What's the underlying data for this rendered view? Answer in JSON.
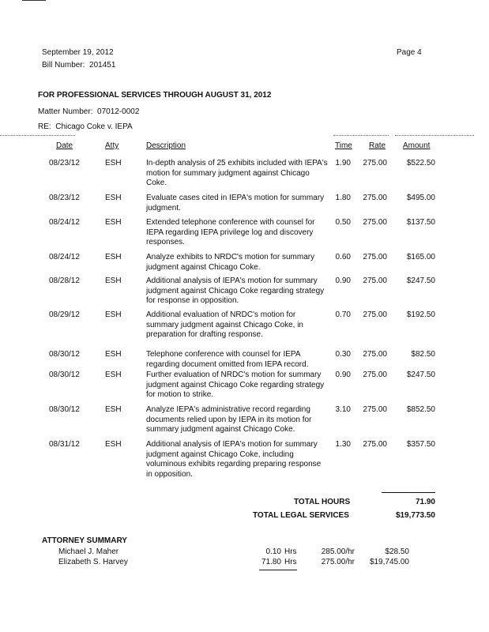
{
  "header": {
    "date": "September 19, 2012",
    "bill_number_label": "Bill Number:",
    "bill_number": "201451",
    "page": "Page 4"
  },
  "section_title": "FOR PROFESSIONAL SERVICES THROUGH AUGUST 31, 2012",
  "matter": {
    "label": "Matter Number:",
    "value": "07012-0002"
  },
  "re": {
    "label": "RE:",
    "value": "Chicago Coke v. IEPA"
  },
  "columns": {
    "date": "Date",
    "atty": "Atty",
    "description": "Description",
    "time": "Time",
    "rate": "Rate",
    "amount": "Amount"
  },
  "entries": [
    {
      "date": "08/23/12",
      "atty": "ESH",
      "description": "In-depth analysis of 25 exhibits included with IEPA's motion for summary judgment against Chicago Coke.",
      "time": "1.90",
      "rate": "275.00",
      "amount": "$522.50"
    },
    {
      "date": "08/23/12",
      "atty": "ESH",
      "description": "Evaluate cases cited in IEPA's motion for summary judgment.",
      "time": "1.80",
      "rate": "275.00",
      "amount": "$495.00"
    },
    {
      "date": "08/24/12",
      "atty": "ESH",
      "description": "Extended telephone conference with counsel for IEPA regarding IEPA privilege log and discovery responses.",
      "time": "0.50",
      "rate": "275.00",
      "amount": "$137.50"
    },
    {
      "date": "08/24/12",
      "atty": "ESH",
      "description": "Analyze exhibits to NRDC's motion for summary judgment against Chicago Coke.",
      "time": "0.60",
      "rate": "275.00",
      "amount": "$165.00"
    },
    {
      "date": "08/28/12",
      "atty": "ESH",
      "description": "Additional analysis of IEPA's motion for summary judgment against Chicago Coke regarding strategy for response in opposition.",
      "time": "0.90",
      "rate": "275.00",
      "amount": "$247.50"
    },
    {
      "date": "08/29/12",
      "atty": "ESH",
      "description": "Additional evaluation of NRDC's motion for summary judgment against Chicago Coke, in preparation for drafting response.",
      "time": "0.70",
      "rate": "275.00",
      "amount": "$192.50"
    },
    {
      "date": "08/30/12",
      "atty": "ESH",
      "description": "Telephone conference with counsel for IEPA regarding document omitted from IEPA record.",
      "time": "0.30",
      "rate": "275.00",
      "amount": "$82.50"
    },
    {
      "date": "08/30/12",
      "atty": "ESH",
      "description": "Further evaluation of NRDC's motion for summary judgment against Chicago Coke regarding strategy for motion to strike.",
      "time": "0.90",
      "rate": "275.00",
      "amount": "$247.50"
    },
    {
      "date": "08/30/12",
      "atty": "ESH",
      "description": "Analyze IEPA's administrative record regarding documents relied upon by IEPA in its motion for summary judgment against Chicago Coke.",
      "time": "3.10",
      "rate": "275.00",
      "amount": "$852.50"
    },
    {
      "date": "08/31/12",
      "atty": "ESH",
      "description": "Additional analysis of IEPA's motion for summary judgment against Chicago Coke, including voluminous exhibits regarding preparing response in opposition.",
      "time": "1.30",
      "rate": "275.00",
      "amount": "$357.50"
    }
  ],
  "totals": {
    "hours_label": "TOTAL HOURS",
    "hours": "71.90",
    "services_label": "TOTAL LEGAL SERVICES",
    "services": "$19,773.50"
  },
  "attorney_summary": {
    "title": "ATTORNEY SUMMARY",
    "rows": [
      {
        "name": "Michael J. Maher",
        "hours": "0.10",
        "hrs_unit": "Hrs",
        "rate": "285.00/hr",
        "amount": "$28.50"
      },
      {
        "name": "Elizabeth S. Harvey",
        "hours": "71.80",
        "hrs_unit": "Hrs",
        "rate": "275.00/hr",
        "amount": "$19,745.00"
      }
    ]
  }
}
